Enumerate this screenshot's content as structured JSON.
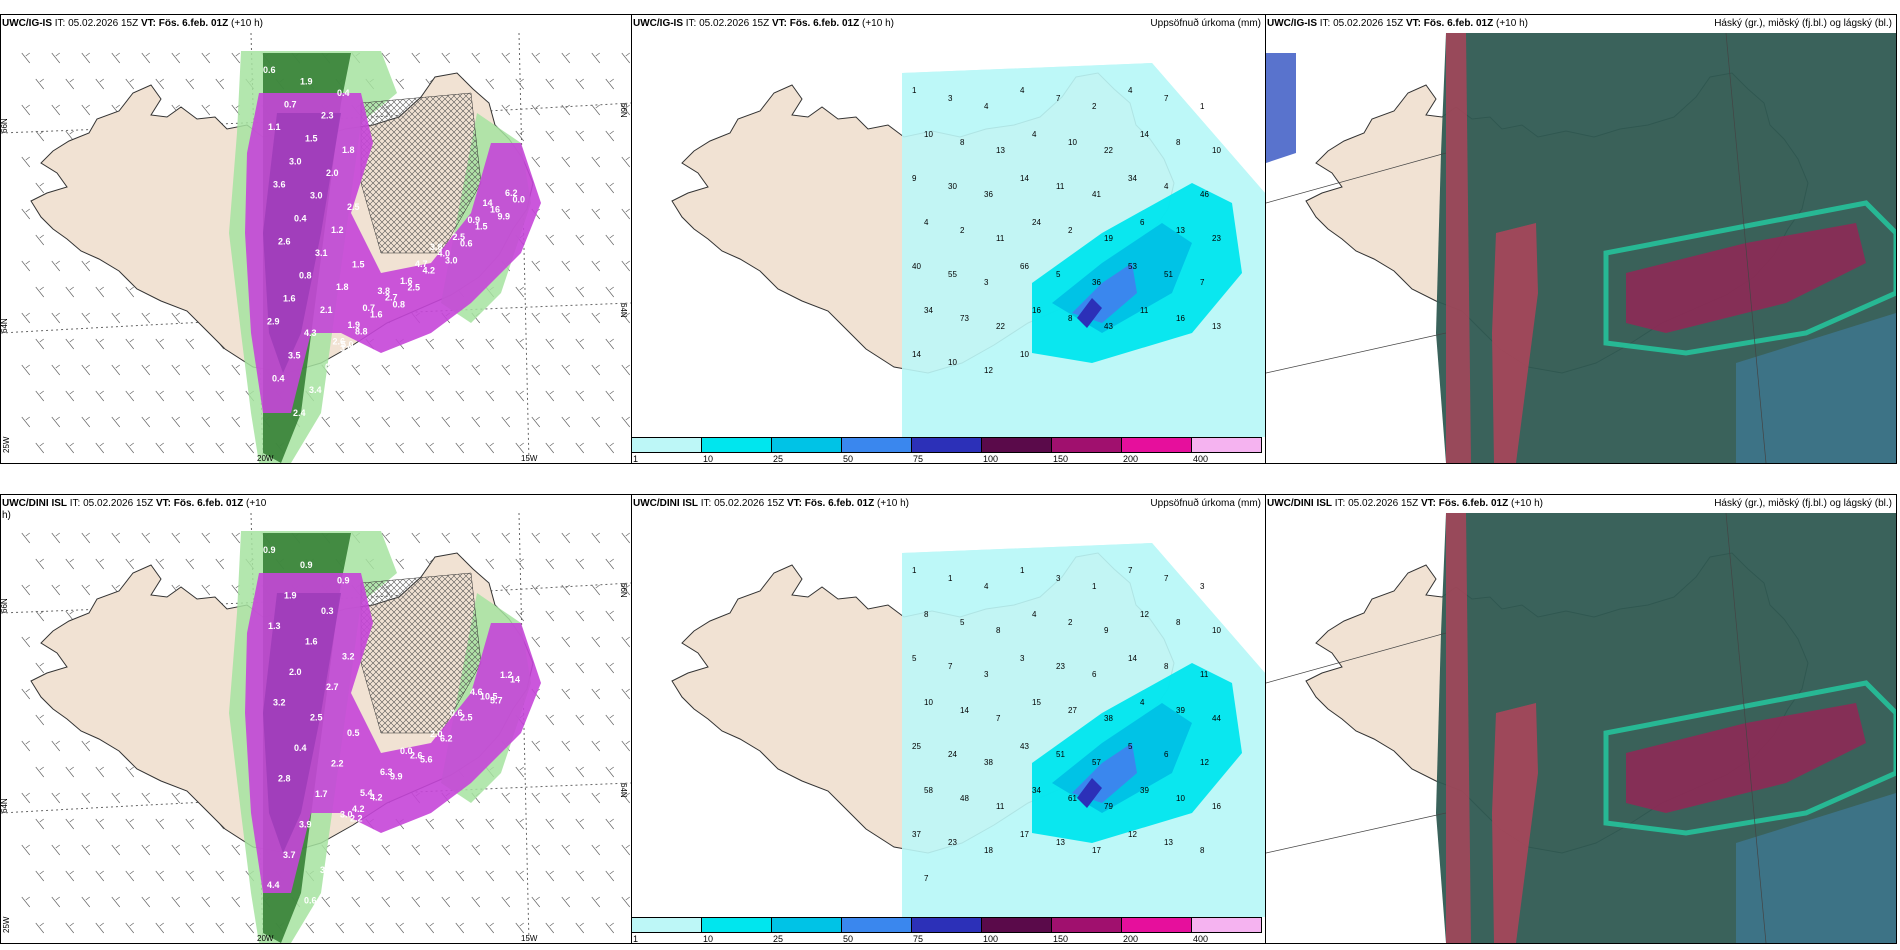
{
  "rows": [
    {
      "precip": {
        "model": "UWC/IG-IS",
        "it_label": "IT:",
        "it_value": "05.02.2026 15Z",
        "vt_label": "VT:",
        "vt_value": "Fös. 6.feb. 01Z",
        "lead": "(+10 h)",
        "lat_labels": [
          "66N",
          "64N"
        ],
        "lon_labels": [
          "25W",
          "20W",
          "15W"
        ],
        "right_lat_labels": [
          "66N",
          "64N"
        ],
        "values": [
          "0.6",
          "1.9",
          "0.4",
          "0.7",
          "2.3",
          "1.1",
          "1.5",
          "1.8",
          "3.0",
          "2.0",
          "3.6",
          "3.0",
          "2.5",
          "0.4",
          "1.2",
          "2.6",
          "3.1",
          "1.5",
          "0.8",
          "1.8",
          "1.6",
          "2.1",
          "2.9",
          "4.3",
          "5.0",
          "3.5",
          "0.3",
          "0.4",
          "3.4",
          "2.5",
          "2.4",
          "2.6",
          "3.6",
          "1.9",
          "8.8",
          "0.7",
          "1.6",
          "3.8",
          "2.7",
          "0.8",
          "1.6",
          "2.5",
          "4.7",
          "4.2",
          "3.8",
          "4.0",
          "3.0",
          "2.5",
          "0.6",
          "0.9",
          "1.5",
          "14",
          "16",
          "9.9",
          "6.2",
          "0.0"
        ]
      },
      "accum": {
        "model": "UWC/IG-IS",
        "it_label": "IT:",
        "it_value": "05.02.2026 15Z",
        "vt_label": "VT:",
        "vt_value": "Fös. 6.feb. 01Z",
        "lead": "(+10 h)",
        "title": "Uppsöfnuð úrkoma (mm)",
        "values": [
          "1",
          "3",
          "4",
          "4",
          "7",
          "2",
          "4",
          "7",
          "1",
          "10",
          "8",
          "13",
          "4",
          "10",
          "22",
          "14",
          "8",
          "10",
          "9",
          "30",
          "36",
          "14",
          "11",
          "41",
          "34",
          "4",
          "46",
          "4",
          "2",
          "11",
          "24",
          "2",
          "19",
          "6",
          "13",
          "23",
          "40",
          "55",
          "3",
          "66",
          "5",
          "36",
          "53",
          "51",
          "7",
          "34",
          "73",
          "22",
          "16",
          "8",
          "43",
          "11",
          "16",
          "13",
          "14",
          "10",
          "12",
          "10"
        ],
        "colorbar": {
          "colors": [
            "#bdf7f7",
            "#00e6ee",
            "#00c3e6",
            "#3a87ee",
            "#2c30b8",
            "#5a0a4a",
            "#a0106e",
            "#e60f9c",
            "#f5b3f0"
          ],
          "ticks": [
            "1",
            "10",
            "25",
            "50",
            "75",
            "100",
            "150",
            "200",
            "400"
          ]
        }
      },
      "cloud": {
        "model": "UWC/IG-IS",
        "it_label": "IT:",
        "it_value": "05.02.2026 15Z",
        "vt_label": "VT:",
        "vt_value": "Fös. 6.feb. 01Z",
        "lead": "(+10 h)",
        "title": "Háský (gr.), miðský (fj.bl.) og lágský (bl.)"
      }
    },
    {
      "precip": {
        "model": "UWC/DINI ISL",
        "it_label": "IT:",
        "it_value": "05.02.2026 15Z",
        "vt_label": "VT:",
        "vt_value": "Fös. 6.feb. 01Z",
        "lead": "(+10",
        "lead_wrap": "h)",
        "lat_labels": [
          "66N",
          "64N"
        ],
        "lon_labels": [
          "25W",
          "20W",
          "15W"
        ],
        "right_lat_labels": [
          "66N",
          "64N"
        ],
        "values": [
          "0.9",
          "0.9",
          "0.9",
          "1.9",
          "0.3",
          "1.3",
          "1.6",
          "3.2",
          "2.0",
          "2.7",
          "3.2",
          "2.5",
          "0.5",
          "0.4",
          "2.2",
          "2.8",
          "1.7",
          "4.2",
          "3.9",
          "1.6",
          "3.7",
          "3.0",
          "4.4",
          "0.6",
          "3.0",
          "2.2",
          "5.4",
          "4.2",
          "6.3",
          "9.9",
          "0.0",
          "2.6",
          "5.6",
          "2.0",
          "6.2",
          "0.6",
          "2.5",
          "4.6",
          "10.5",
          "5.7",
          "1.2",
          "14"
        ]
      },
      "accum": {
        "model": "UWC/DINI ISL",
        "it_label": "IT:",
        "it_value": "05.02.2026 15Z",
        "vt_label": "VT:",
        "vt_value": "Fös. 6.feb. 01Z",
        "lead": "(+10 h)",
        "title": "Uppsöfnuð úrkoma (mm)",
        "values": [
          "1",
          "1",
          "4",
          "1",
          "3",
          "1",
          "7",
          "7",
          "3",
          "8",
          "5",
          "8",
          "4",
          "2",
          "9",
          "12",
          "8",
          "10",
          "5",
          "7",
          "3",
          "3",
          "23",
          "6",
          "14",
          "8",
          "11",
          "10",
          "14",
          "7",
          "15",
          "27",
          "38",
          "4",
          "39",
          "44",
          "25",
          "24",
          "38",
          "43",
          "51",
          "57",
          "5",
          "6",
          "12",
          "58",
          "48",
          "11",
          "34",
          "61",
          "79",
          "39",
          "10",
          "16",
          "37",
          "23",
          "18",
          "17",
          "13",
          "17",
          "12",
          "13",
          "8",
          "7"
        ],
        "colorbar": {
          "colors": [
            "#bdf7f7",
            "#00e6ee",
            "#00c3e6",
            "#3a87ee",
            "#2c30b8",
            "#5a0a4a",
            "#a0106e",
            "#e60f9c",
            "#f5b3f0"
          ],
          "ticks": [
            "1",
            "10",
            "25",
            "50",
            "75",
            "100",
            "150",
            "200",
            "400"
          ]
        }
      },
      "cloud": {
        "model": "UWC/DINI ISL",
        "it_label": "IT:",
        "it_value": "05.02.2026 15Z",
        "vt_label": "VT:",
        "vt_value": "Fös. 6.feb. 01Z",
        "lead": "(+10 h)",
        "title": "Háský (gr.), miðský (fj.bl.) og lágský (bl.)"
      }
    }
  ],
  "colors": {
    "land": "#f1e2d3",
    "accum_bg": "#bdf7f7",
    "accum_mid": "#00e6ee",
    "precip_magenta": "#c545d8",
    "precip_green": "#2f7a2f",
    "cloud_dark": "#2f5a52",
    "cloud_red": "#b0445a",
    "cloud_teal": "#26c29a"
  }
}
